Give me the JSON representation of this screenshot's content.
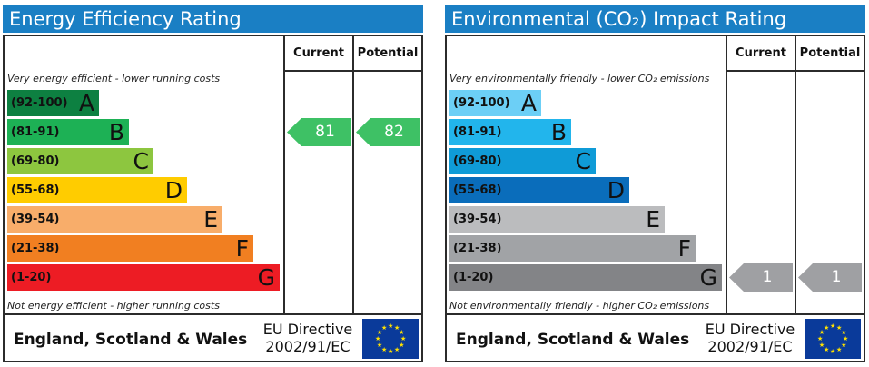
{
  "colors": {
    "title_bg": "#1a7fc4",
    "ee_bands": [
      "#0d8041",
      "#1db155",
      "#8dc63f",
      "#ffcc00",
      "#f8ad6a",
      "#f17f21",
      "#ed1c24"
    ],
    "ei_bands": [
      "#6ccff6",
      "#22b5ec",
      "#0f9bd7",
      "#0a6dbb",
      "#bbbcbe",
      "#a1a3a6",
      "#838487"
    ],
    "ee_arrow": "#3ec165",
    "ei_arrow": "#9fa0a3",
    "eu_flag": "#0a3a9a",
    "eu_stars": "#ffe100"
  },
  "icons": {
    "eu_flag": "eu-flag-icon"
  },
  "chart_data": [
    {
      "type": "bar",
      "title": "Energy Efficiency Rating",
      "columns": [
        "Current",
        "Potential"
      ],
      "top_note": "Very energy efficient - lower running costs",
      "bottom_note": "Not energy efficient - higher running costs",
      "bands": [
        {
          "range": "(92-100)",
          "letter": "A"
        },
        {
          "range": "(81-91)",
          "letter": "B"
        },
        {
          "range": "(69-80)",
          "letter": "C"
        },
        {
          "range": "(55-68)",
          "letter": "D"
        },
        {
          "range": "(39-54)",
          "letter": "E"
        },
        {
          "range": "(21-38)",
          "letter": "F"
        },
        {
          "range": "(1-20)",
          "letter": "G"
        }
      ],
      "current": {
        "value": 81,
        "band": "B"
      },
      "potential": {
        "value": 82,
        "band": "B"
      },
      "footer": {
        "region": "England, Scotland & Wales",
        "directive_line1": "EU Directive",
        "directive_line2": "2002/91/EC"
      }
    },
    {
      "type": "bar",
      "title": "Environmental (CO₂) Impact Rating",
      "columns": [
        "Current",
        "Potential"
      ],
      "top_note": "Very environmentally friendly - lower CO₂ emissions",
      "bottom_note": "Not environmentally friendly - higher CO₂ emissions",
      "bands": [
        {
          "range": "(92-100)",
          "letter": "A"
        },
        {
          "range": "(81-91)",
          "letter": "B"
        },
        {
          "range": "(69-80)",
          "letter": "C"
        },
        {
          "range": "(55-68)",
          "letter": "D"
        },
        {
          "range": "(39-54)",
          "letter": "E"
        },
        {
          "range": "(21-38)",
          "letter": "F"
        },
        {
          "range": "(1-20)",
          "letter": "G"
        }
      ],
      "current": {
        "value": 1,
        "band": "G"
      },
      "potential": {
        "value": 1,
        "band": "G"
      },
      "footer": {
        "region": "England, Scotland & Wales",
        "directive_line1": "EU Directive",
        "directive_line2": "2002/91/EC"
      }
    }
  ]
}
